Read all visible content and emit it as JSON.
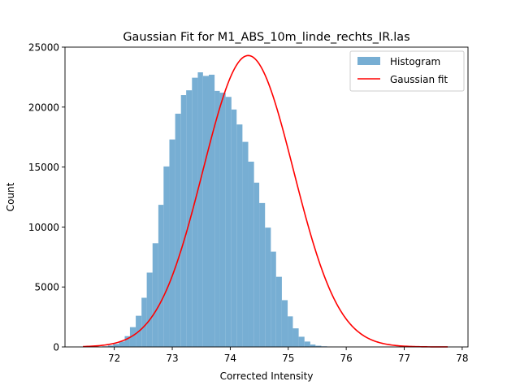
{
  "chart_data": {
    "type": "bar",
    "title": "Gaussian Fit for M1_ABS_10m_linde_rechts_IR.las",
    "xlabel": "Corrected Intensity",
    "ylabel": "Count",
    "xlim": [
      71.15,
      78.1
    ],
    "ylim": [
      0,
      25000
    ],
    "xticks": [
      "72",
      "73",
      "74",
      "75",
      "76",
      "77",
      "78"
    ],
    "xtick_values": [
      72,
      73,
      74,
      75,
      76,
      77,
      78
    ],
    "yticks": [
      "0",
      "5000",
      "10000",
      "15000",
      "20000",
      "25000"
    ],
    "ytick_values": [
      0,
      5000,
      10000,
      15000,
      20000,
      25000
    ],
    "legend_position": "top-right",
    "grid": false,
    "histogram": {
      "name": "Histogram",
      "color": "#77aed3",
      "bin_edges": [
        71.79,
        71.89,
        71.98,
        72.08,
        72.18,
        72.27,
        72.37,
        72.47,
        72.56,
        72.66,
        72.76,
        72.85,
        72.95,
        73.05,
        73.15,
        73.24,
        73.34,
        73.44,
        73.53,
        73.63,
        73.73,
        73.82,
        73.92,
        74.02,
        74.11,
        74.21,
        74.31,
        74.41,
        74.5,
        74.6,
        74.7,
        74.79,
        74.89,
        74.99,
        75.08,
        75.18,
        75.28,
        75.38,
        75.47,
        75.57,
        75.67,
        75.76,
        75.86,
        75.96,
        76.05,
        76.15,
        76.25,
        76.34,
        76.44,
        76.54,
        76.64,
        76.73,
        76.83,
        76.93,
        77.02
      ],
      "counts": [
        50,
        120,
        250,
        450,
        900,
        1650,
        2600,
        4100,
        6200,
        8650,
        11850,
        15050,
        17300,
        19450,
        21000,
        21400,
        22450,
        22900,
        22600,
        22700,
        21350,
        21200,
        20850,
        19800,
        18550,
        17100,
        15450,
        13700,
        12000,
        9950,
        7950,
        5850,
        3900,
        2550,
        1550,
        850,
        450,
        200,
        100,
        50,
        20,
        10,
        5,
        2,
        1,
        1,
        0,
        0,
        0,
        0,
        0,
        0,
        0,
        0
      ]
    },
    "gaussian_fit": {
      "name": "Gaussian fit",
      "color": "#ff0000",
      "amplitude": 24300,
      "mean": 74.31,
      "sigma": 0.78,
      "x_range": [
        71.46,
        77.75
      ]
    }
  }
}
